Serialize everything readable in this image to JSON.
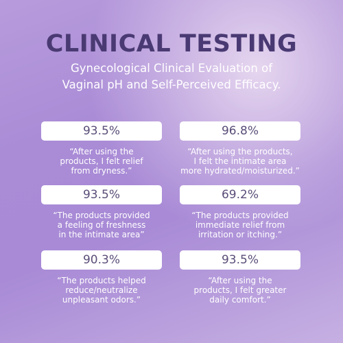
{
  "header": {
    "title": "CLINICAL TESTING",
    "subtitle": [
      "Gynecological Clinical Evaluation of",
      "Vaginal pH and Self-Perceived Efficacy."
    ]
  },
  "stats": [
    {
      "value": "93.5%",
      "quote": [
        "“After using the",
        "products, I felt relief",
        "from dryness.”"
      ]
    },
    {
      "value": "96.8%",
      "quote": [
        "“After using the products,",
        "I felt the intimate area",
        "more hydrated/moisturized.”"
      ]
    },
    {
      "value": "93.5%",
      "quote": [
        "“The products provided",
        "a feeling of freshness",
        "in the intimate area”"
      ]
    },
    {
      "value": "69.2%",
      "quote": [
        "“The products provided",
        "immediate relief from",
        "irritation or itching.”"
      ]
    },
    {
      "value": "90.3%",
      "quote": [
        "“The products helped",
        "reduce/neutralize",
        "unpleasant odors.”"
      ]
    },
    {
      "value": "93.5%",
      "quote": [
        "“After using the",
        "products, I felt greater",
        "daily comfort.”"
      ]
    }
  ]
}
